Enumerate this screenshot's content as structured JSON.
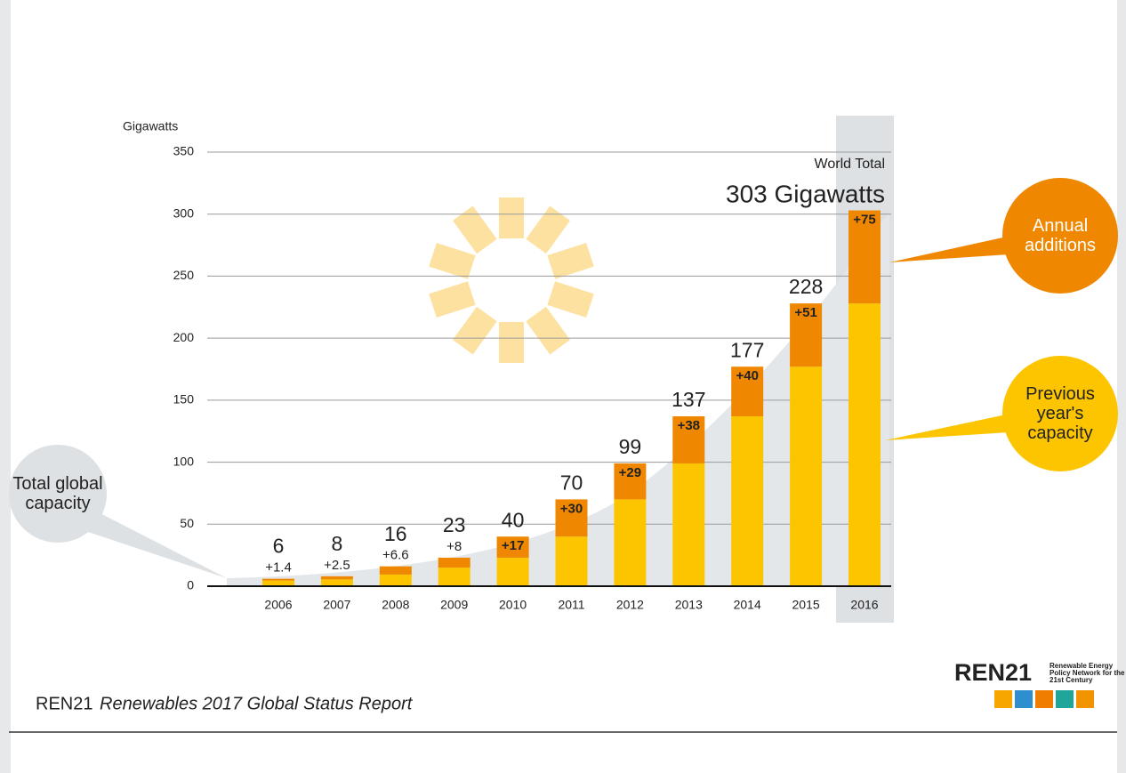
{
  "chart_data": {
    "type": "stacked_bar",
    "y_label": "Gigawatts",
    "categories": [
      "2006",
      "2007",
      "2008",
      "2009",
      "2010",
      "2011",
      "2012",
      "2013",
      "2014",
      "2015",
      "2016"
    ],
    "series": [
      {
        "name": "Previous year's capacity",
        "color": "#fdc500",
        "values": [
          4.6,
          5.5,
          9.4,
          15,
          23,
          40,
          70,
          99,
          137,
          177,
          228
        ]
      },
      {
        "name": "Annual additions",
        "color": "#ef8700",
        "values": [
          1.4,
          2.5,
          6.6,
          8,
          17,
          30,
          29,
          38,
          40,
          51,
          75
        ],
        "value_labels": [
          "+1.4",
          "+2.5",
          "+6.6",
          "+8",
          "+17",
          "+30",
          "+29",
          "+38",
          "+40",
          "+51",
          "+75"
        ]
      }
    ],
    "totals": [
      6,
      8,
      16,
      23,
      40,
      70,
      99,
      137,
      177,
      228,
      303
    ],
    "total_label": "Total global capacity",
    "annotation_title": "World Total",
    "annotation_value": "303 Gigawatts",
    "ylim": [
      0,
      350
    ],
    "yticks": [
      0,
      50,
      100,
      150,
      200,
      250,
      300,
      350
    ],
    "grid": true,
    "source_org": "REN21",
    "source_title": "Renewables 2017 Global Status Report",
    "logo_name": "REN21",
    "logo_text": "Renewable Energy Policy Network for the 21st Century"
  }
}
